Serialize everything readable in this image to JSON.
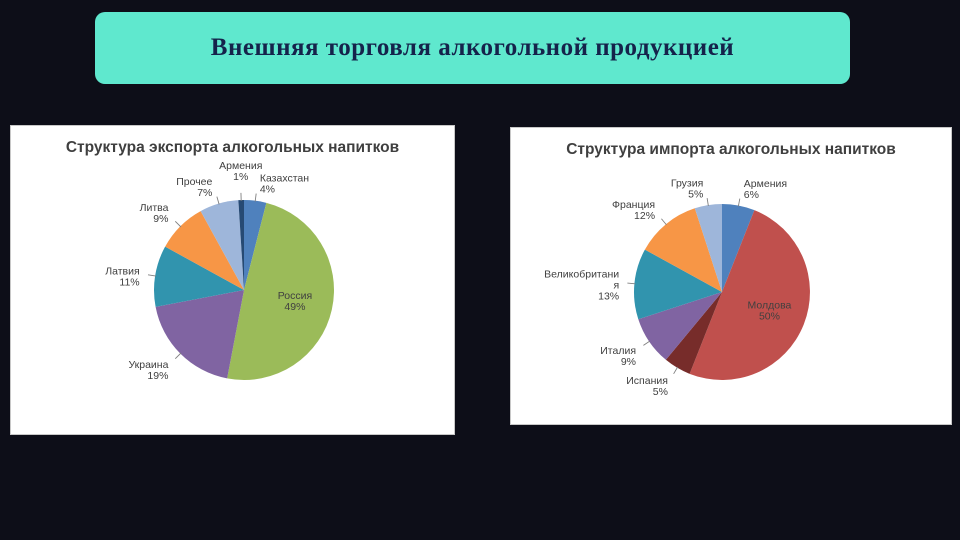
{
  "slide": {
    "title": "Внешняя торговля алкогольной продукцией"
  },
  "chart_data": [
    {
      "type": "pie",
      "title": "Структура экспорта алкогольных напитков",
      "start_angle_deg": 0,
      "direction": "clockwise",
      "labels": [
        "Казахстан",
        "Россия",
        "Украина",
        "Латвия",
        "Литва",
        "Прочее",
        "Армения"
      ],
      "values": [
        4,
        49,
        19,
        11,
        9,
        7,
        1
      ],
      "colors": [
        "#4f81bd",
        "#9bbb59",
        "#8064a2",
        "#3194ae",
        "#f79646",
        "#9eb6da",
        "#264a74"
      ],
      "label_format": "name_percent",
      "legend": "none"
    },
    {
      "type": "pie",
      "title": "Структура импорта алкогольных напитков",
      "start_angle_deg": 0,
      "direction": "clockwise",
      "labels": [
        "Армения",
        "Молдова",
        "Испания",
        "Италия",
        "Великобритания",
        "Франция",
        "Грузия"
      ],
      "values": [
        6,
        50,
        5,
        9,
        13,
        12,
        5
      ],
      "colors": [
        "#4f81bd",
        "#c0504d",
        "#772c2a",
        "#8064a2",
        "#3194ae",
        "#f79646",
        "#9eb6da"
      ],
      "label_format": "name_percent",
      "legend": "none"
    }
  ]
}
